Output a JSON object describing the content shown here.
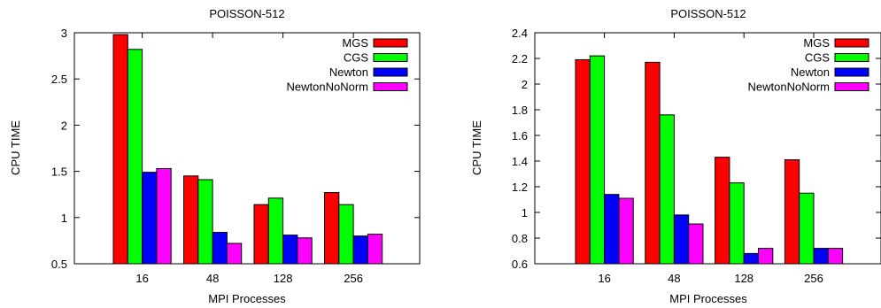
{
  "chart_data": [
    {
      "type": "bar",
      "title": "POISSON-512",
      "xlabel": "MPI Processes",
      "ylabel": "CPU TIME",
      "categories": [
        "16",
        "48",
        "128",
        "256"
      ],
      "ylim": [
        0.5,
        3
      ],
      "yticks": [
        "0.5",
        "1",
        "1.5",
        "2",
        "2.5",
        "3"
      ],
      "grid": false,
      "legend_position": "top-right",
      "series": [
        {
          "name": "MGS",
          "color": "#ff0000",
          "values": [
            2.98,
            1.45,
            1.14,
            1.27
          ]
        },
        {
          "name": "CGS",
          "color": "#00ff00",
          "values": [
            2.82,
            1.41,
            1.21,
            1.14
          ]
        },
        {
          "name": "Newton",
          "color": "#0000ff",
          "values": [
            1.49,
            0.84,
            0.81,
            0.8
          ]
        },
        {
          "name": "NewtonNoNorm",
          "color": "#ff00ff",
          "values": [
            1.53,
            0.72,
            0.78,
            0.82
          ]
        }
      ]
    },
    {
      "type": "bar",
      "title": "POISSON-512",
      "xlabel": "MPI Processes",
      "ylabel": "CPU TIME",
      "categories": [
        "16",
        "48",
        "128",
        "256"
      ],
      "ylim": [
        0.6,
        2.4
      ],
      "yticks": [
        "0.6",
        "0.8",
        "1",
        "1.2",
        "1.4",
        "1.6",
        "1.8",
        "2",
        "2.2",
        "2.4"
      ],
      "grid": false,
      "legend_position": "top-right",
      "series": [
        {
          "name": "MGS",
          "color": "#ff0000",
          "values": [
            2.19,
            2.17,
            1.43,
            1.41
          ]
        },
        {
          "name": "CGS",
          "color": "#00ff00",
          "values": [
            2.22,
            1.76,
            1.23,
            1.15
          ]
        },
        {
          "name": "Newton",
          "color": "#0000ff",
          "values": [
            1.14,
            0.98,
            0.68,
            0.72
          ]
        },
        {
          "name": "NewtonNoNorm",
          "color": "#ff00ff",
          "values": [
            1.11,
            0.91,
            0.72,
            0.72
          ]
        }
      ]
    }
  ]
}
